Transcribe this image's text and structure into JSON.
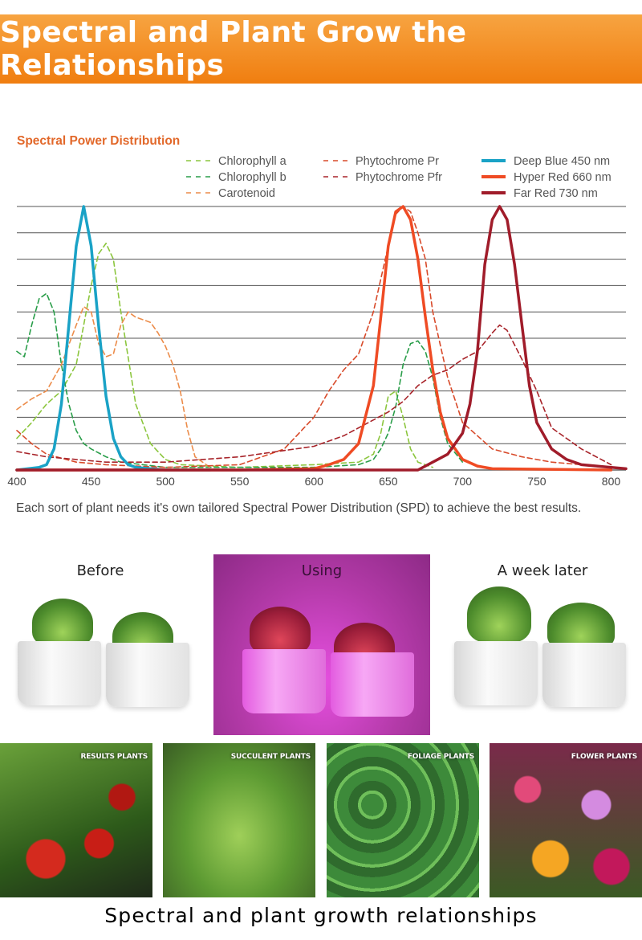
{
  "banner": {
    "title": "Spectral and Plant Grow the Relationships"
  },
  "chart_data": {
    "type": "line",
    "title": "Spectral Power Distribution",
    "xlabel": "",
    "ylabel": "",
    "xlim": [
      400,
      810
    ],
    "ylim": [
      0,
      100
    ],
    "x_ticks": [
      400,
      450,
      500,
      550,
      600,
      650,
      700,
      750,
      800
    ],
    "grid": true,
    "legend_position": "top",
    "colors": {
      "chlorophyll_a": "#8cc63e",
      "chlorophyll_b": "#2a9e4a",
      "carotenoid": "#ec8c4a",
      "phytochrome_pr": "#d84a2a",
      "phytochrome_pfr": "#a8242a",
      "deep_blue": "#1aa2c6",
      "hyper_red": "#ef4b24",
      "far_red": "#a01c2a"
    },
    "series": [
      {
        "key": "chlorophyll_a",
        "name": "Chlorophyll a",
        "style": "dashed",
        "x": [
          400,
          410,
          420,
          430,
          440,
          450,
          455,
          460,
          465,
          470,
          480,
          490,
          500,
          510,
          550,
          600,
          630,
          640,
          645,
          650,
          655,
          660,
          665,
          670,
          680
        ],
        "y": [
          12,
          18,
          25,
          30,
          40,
          70,
          82,
          86,
          80,
          60,
          25,
          10,
          4,
          2,
          1,
          2,
          3,
          6,
          14,
          28,
          30,
          20,
          8,
          3,
          1
        ]
      },
      {
        "key": "chlorophyll_b",
        "name": "Chlorophyll b",
        "style": "dashed",
        "x": [
          400,
          405,
          410,
          415,
          420,
          425,
          430,
          435,
          440,
          445,
          450,
          460,
          470,
          500,
          550,
          600,
          630,
          640,
          645,
          650,
          655,
          660,
          665,
          670,
          675,
          680,
          685,
          690,
          700
        ],
        "y": [
          45,
          43,
          55,
          65,
          67,
          60,
          40,
          25,
          15,
          10,
          8,
          5,
          3,
          1,
          1,
          1,
          2,
          4,
          8,
          14,
          24,
          40,
          48,
          49,
          45,
          35,
          20,
          10,
          3
        ]
      },
      {
        "key": "carotenoid",
        "name": "Carotenoid",
        "style": "dashed",
        "x": [
          400,
          410,
          420,
          430,
          440,
          445,
          450,
          455,
          460,
          465,
          470,
          475,
          480,
          485,
          490,
          495,
          500,
          505,
          510,
          515,
          520,
          530
        ],
        "y": [
          23,
          27,
          30,
          40,
          55,
          62,
          60,
          48,
          43,
          44,
          55,
          60,
          58,
          57,
          56,
          52,
          47,
          40,
          30,
          15,
          5,
          1
        ]
      },
      {
        "key": "phytochrome_pr",
        "name": "Phytochrome Pr",
        "style": "dashed",
        "x": [
          400,
          410,
          420,
          440,
          460,
          500,
          550,
          580,
          600,
          610,
          620,
          630,
          640,
          650,
          655,
          660,
          665,
          670,
          675,
          680,
          690,
          700,
          720,
          740,
          760,
          780,
          800
        ],
        "y": [
          15,
          10,
          6,
          3,
          2,
          1,
          2,
          8,
          20,
          30,
          38,
          44,
          60,
          85,
          97,
          100,
          98,
          90,
          80,
          60,
          35,
          18,
          8,
          5,
          3,
          2,
          1
        ]
      },
      {
        "key": "phytochrome_pfr",
        "name": "Phytochrome Pfr",
        "style": "dashed",
        "x": [
          400,
          420,
          440,
          460,
          500,
          550,
          600,
          620,
          640,
          650,
          660,
          670,
          680,
          690,
          700,
          710,
          720,
          725,
          730,
          740,
          750,
          760,
          780,
          800
        ],
        "y": [
          7,
          5,
          4,
          3,
          3,
          5,
          9,
          13,
          19,
          22,
          26,
          32,
          36,
          38,
          42,
          45,
          52,
          55,
          53,
          42,
          30,
          16,
          8,
          2
        ]
      },
      {
        "key": "deep_blue",
        "name": "Deep Blue 450 nm",
        "style": "solid",
        "x": [
          400,
          415,
          420,
          425,
          430,
          435,
          440,
          445,
          450,
          455,
          460,
          465,
          470,
          475,
          480,
          490,
          500,
          530
        ],
        "y": [
          0,
          1,
          2,
          8,
          25,
          55,
          85,
          100,
          85,
          55,
          28,
          12,
          5,
          2,
          1,
          0.5,
          0,
          0
        ]
      },
      {
        "key": "hyper_red",
        "name": "Hyper Red 660 nm",
        "style": "solid",
        "x": [
          400,
          550,
          600,
          610,
          620,
          630,
          640,
          645,
          650,
          655,
          660,
          665,
          670,
          675,
          680,
          685,
          690,
          700,
          710,
          720,
          800
        ],
        "y": [
          0,
          0,
          0.5,
          2,
          4,
          10,
          32,
          58,
          85,
          98,
          100,
          95,
          80,
          58,
          38,
          22,
          12,
          4,
          1.5,
          0.5,
          0
        ]
      },
      {
        "key": "far_red",
        "name": "Far Red 730 nm",
        "style": "solid",
        "x": [
          400,
          650,
          670,
          690,
          700,
          705,
          710,
          715,
          720,
          725,
          730,
          735,
          740,
          745,
          750,
          760,
          770,
          780,
          800,
          810
        ],
        "y": [
          0,
          0,
          0,
          6,
          14,
          25,
          45,
          78,
          95,
          100,
          95,
          78,
          55,
          32,
          18,
          8,
          4,
          2,
          1,
          0.5
        ]
      }
    ]
  },
  "description": "Each sort of plant needs it's own tailored Spectral Power Distribution (SPD) to achieve the best results.",
  "photos": {
    "before": "Before",
    "using": "Using",
    "after": "A week later"
  },
  "tiles": [
    {
      "label": "RESULTS PLANTS"
    },
    {
      "label": "SUCCULENT PLANTS"
    },
    {
      "label": "FOLIAGE PLANTS"
    },
    {
      "label": "FLOWER PLANTS"
    }
  ],
  "footer": {
    "text": "Spectral and plant growth relationships"
  }
}
